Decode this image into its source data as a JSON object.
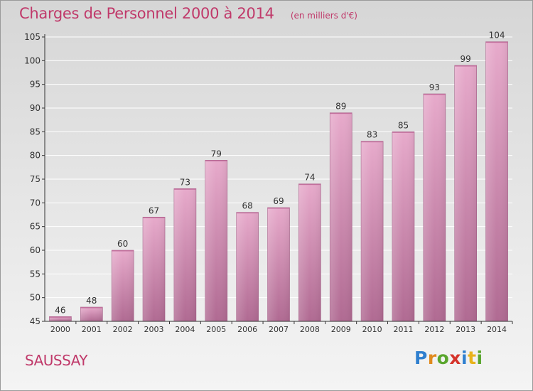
{
  "header": {
    "title": "Charges de Personnel 2000 à 2014",
    "subtitle": "(en milliers d'€)"
  },
  "footer": {
    "commune": "SAUSSAY",
    "logo_text": "Proxiti"
  },
  "colors": {
    "title": "#c0396a",
    "bar": "#d27fab",
    "grid": "#ffffff",
    "axis": "#333333"
  },
  "chart_data": {
    "type": "bar",
    "title": "Charges de Personnel 2000 à 2014",
    "subtitle": "(en milliers d'€)",
    "xlabel": "",
    "ylabel": "",
    "categories": [
      "2000",
      "2001",
      "2002",
      "2003",
      "2004",
      "2005",
      "2006",
      "2007",
      "2008",
      "2009",
      "2010",
      "2011",
      "2012",
      "2013",
      "2014"
    ],
    "values": [
      46,
      48,
      60,
      67,
      73,
      79,
      68,
      69,
      74,
      89,
      83,
      85,
      93,
      99,
      104
    ],
    "ylim": [
      45,
      105
    ],
    "yticks": [
      45,
      50,
      55,
      60,
      65,
      70,
      75,
      80,
      85,
      90,
      95,
      100,
      105
    ],
    "grid": true,
    "data_labels": true
  }
}
